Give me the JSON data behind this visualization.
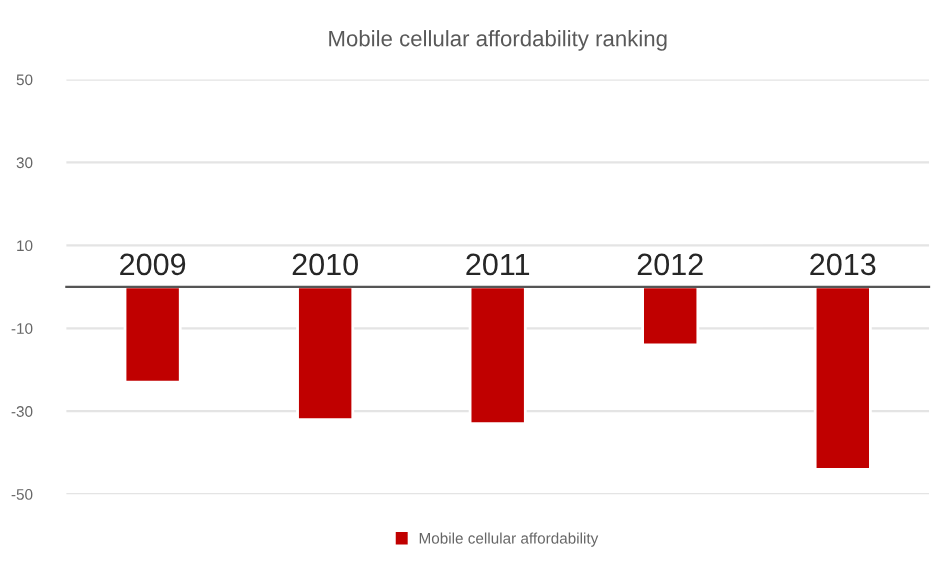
{
  "chart_data": {
    "type": "bar",
    "title": "Mobile cellular affordability ranking",
    "categories": [
      "2009",
      "2010",
      "2011",
      "2012",
      "2013"
    ],
    "series": [
      {
        "name": "Mobile cellular affordability",
        "color": "#c00000",
        "values": [
          -23,
          -32,
          -33,
          -14,
          -44
        ]
      }
    ],
    "ylim": [
      -50,
      50
    ],
    "yticks": [
      -50,
      -30,
      -10,
      10,
      30,
      50
    ],
    "grid": "y",
    "legend": "bottom"
  }
}
